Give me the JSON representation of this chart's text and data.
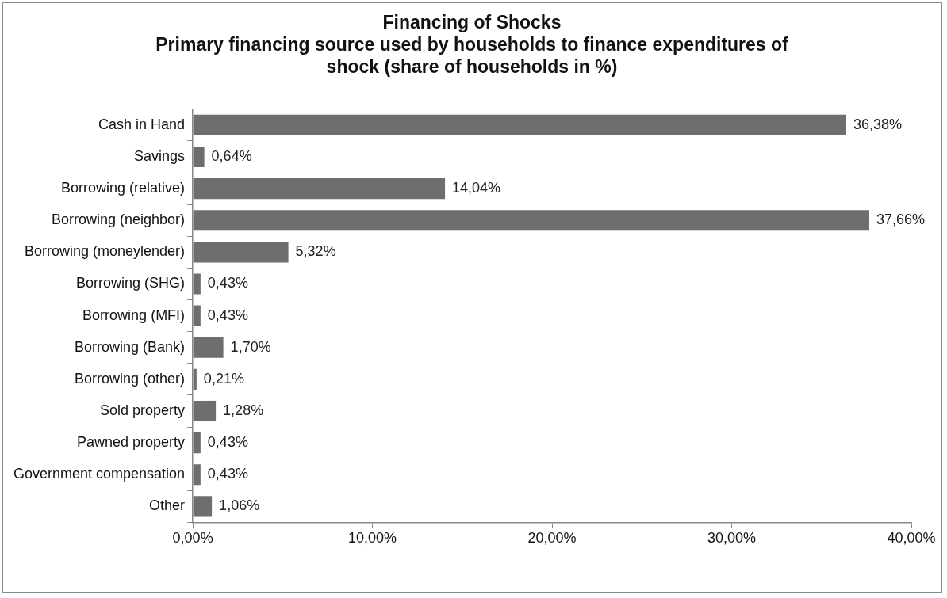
{
  "chart_data": {
    "type": "bar",
    "orientation": "horizontal",
    "title": "Financing of Shocks",
    "subtitle": "Primary financing source used by households to finance expenditures of shock (share of households in %)",
    "categories": [
      "Cash in Hand",
      "Savings",
      "Borrowing (relative)",
      "Borrowing (neighbor)",
      "Borrowing (moneylender)",
      "Borrowing (SHG)",
      "Borrowing (MFI)",
      "Borrowing (Bank)",
      "Borrowing (other)",
      "Sold property",
      "Pawned property",
      "Government compensation",
      "Other"
    ],
    "values": [
      36.38,
      0.64,
      14.04,
      37.66,
      5.32,
      0.43,
      0.43,
      1.7,
      0.21,
      1.28,
      0.43,
      0.43,
      1.06
    ],
    "value_labels": [
      "36,38%",
      "0,64%",
      "14,04%",
      "37,66%",
      "5,32%",
      "0,43%",
      "0,43%",
      "1,70%",
      "0,21%",
      "1,28%",
      "0,43%",
      "0,43%",
      "1,06%"
    ],
    "color": "#6e6e6e",
    "xlim": [
      0,
      40
    ],
    "xticks": [
      {
        "value": 0,
        "label": "0,00%"
      },
      {
        "value": 10,
        "label": "10,00%"
      },
      {
        "value": 20,
        "label": "20,00%"
      },
      {
        "value": 30,
        "label": "30,00%"
      },
      {
        "value": 40,
        "label": "40,00%"
      }
    ],
    "grid": false,
    "legend": false
  }
}
